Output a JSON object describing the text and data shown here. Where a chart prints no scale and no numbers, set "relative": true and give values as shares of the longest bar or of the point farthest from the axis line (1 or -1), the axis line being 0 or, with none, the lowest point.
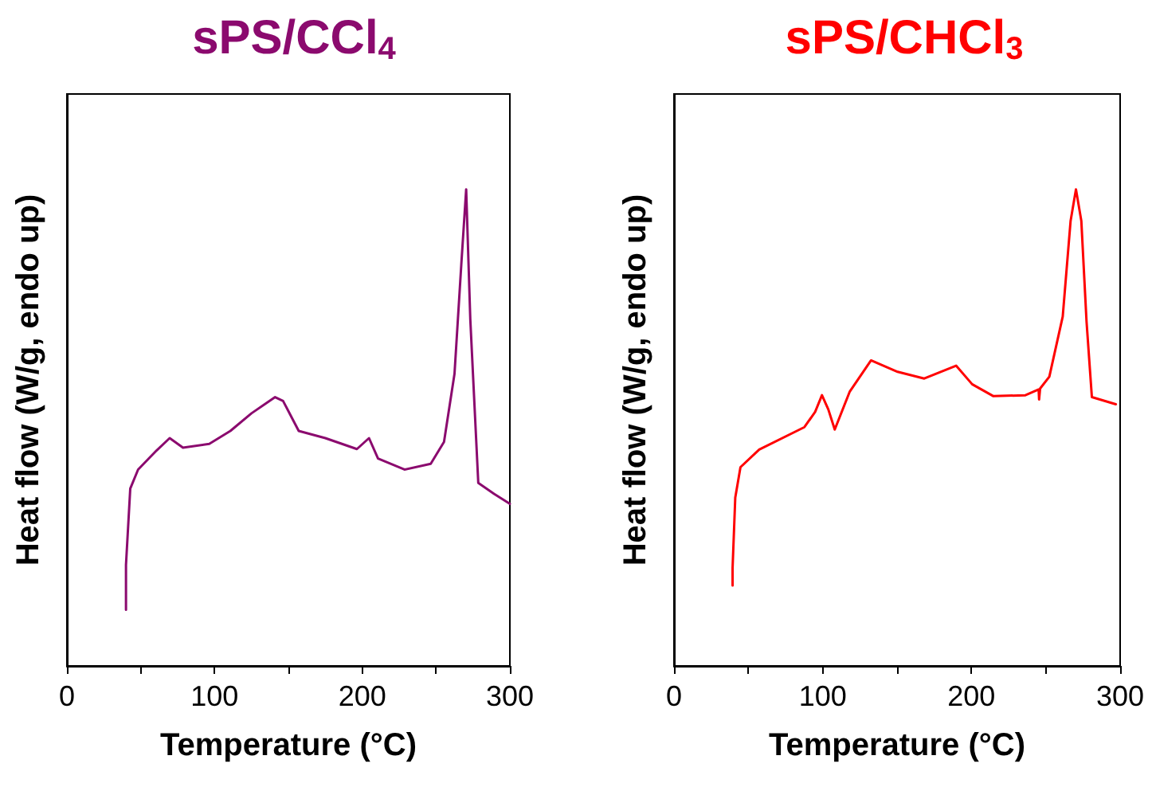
{
  "chart_data": [
    {
      "type": "line",
      "title": "sPS/CCl$_{4}$",
      "xlabel": "Temperature (°C)",
      "ylabel": "Heat flow (W/g, endo up)",
      "relative": true,
      "tick_labels": "x",
      "marker": "none",
      "xlim": [
        0,
        300
      ],
      "xticks": [
        0,
        {
          "value": 50,
          "label": null
        },
        100,
        {
          "value": 150,
          "label": null
        },
        200,
        {
          "value": 250,
          "label": null
        },
        300
      ],
      "series": [
        {
          "color": "#8b0a6e",
          "x": [
            40,
            40,
            42.9,
            48.2,
            60.7,
            69.6,
            78.6,
            96.4,
            110.7,
            125,
            141,
            146.4,
            157,
            175,
            196.4,
            204.6,
            210.7,
            228.6,
            246.4,
            255.4,
            262.5,
            267.1,
            270.4,
            273.2,
            278.6,
            289.3,
            300
          ],
          "values": [
            0.118,
            0.212,
            0.372,
            0.412,
            0.452,
            0.478,
            0.458,
            0.466,
            0.493,
            0.53,
            0.564,
            0.556,
            0.493,
            0.478,
            0.455,
            0.478,
            0.435,
            0.412,
            0.424,
            0.47,
            0.613,
            0.842,
            1.0,
            0.727,
            0.384,
            0.361,
            0.34
          ]
        }
      ]
    },
    {
      "type": "line",
      "title": "sPS/CHCl$_{3}$",
      "xlabel": "Temperature (°C)",
      "ylabel": "Heat flow (W/g, endo up)",
      "relative": true,
      "tick_labels": "x",
      "marker": "none",
      "xlim": [
        0,
        300
      ],
      "xticks": [
        0,
        {
          "value": 50,
          "label": null
        },
        100,
        {
          "value": 150,
          "label": null
        },
        200,
        {
          "value": 250,
          "label": null
        },
        300
      ],
      "series": [
        {
          "color": "#ff0000",
          "x": [
            39.4,
            39.4,
            41.2,
            44.7,
            57.3,
            87.7,
            94.9,
            99.5,
            103.8,
            108.1,
            118.1,
            132.5,
            150.4,
            168.3,
            189.7,
            200.5,
            214.8,
            236.3,
            245.2,
            245.5,
            246.2,
            252.4,
            261.4,
            266.7,
            270.3,
            273.9,
            277.4,
            281,
            297.1
          ],
          "values": [
            0.169,
            0.206,
            0.353,
            0.417,
            0.454,
            0.501,
            0.533,
            0.568,
            0.538,
            0.496,
            0.575,
            0.641,
            0.617,
            0.603,
            0.63,
            0.591,
            0.566,
            0.568,
            0.58,
            0.559,
            0.582,
            0.607,
            0.733,
            0.934,
            1.0,
            0.934,
            0.723,
            0.564,
            0.549
          ]
        }
      ]
    }
  ]
}
